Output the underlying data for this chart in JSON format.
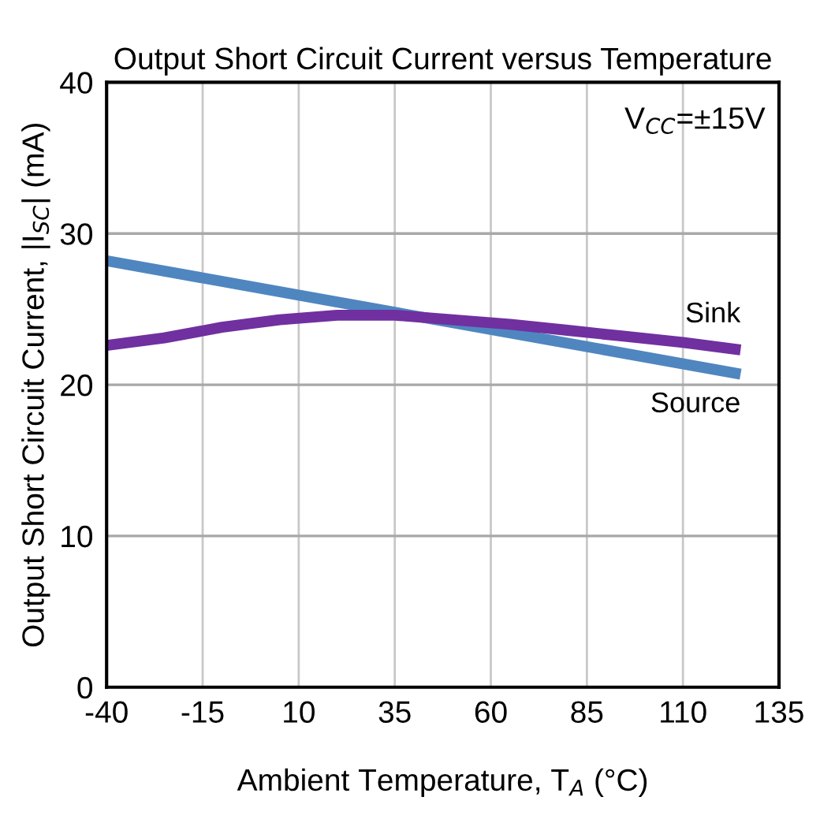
{
  "chart_data": {
    "type": "line",
    "title": "Output Short Circuit Current versus Temperature",
    "xlabel": "Ambient Temperature, T$_{A}$ (°C)",
    "ylabel": "Output Short Circuit Current, |I$_{SC}$| (mA)",
    "annotations": [
      "V$_{CC}$=±15V"
    ],
    "xlim": [
      -40,
      135
    ],
    "xticks": [
      -40,
      -15,
      10,
      35,
      60,
      85,
      110,
      135
    ],
    "ylim": [
      0,
      40
    ],
    "yticks": [
      0,
      10,
      20,
      30,
      40
    ],
    "grid": true,
    "legend": false,
    "series": [
      {
        "name": "Source",
        "color": "#4f86c0",
        "x": [
          -40,
          125
        ],
        "values": [
          28.2,
          20.7
        ]
      },
      {
        "name": "Sink",
        "color": "#7030a0",
        "x": [
          -40,
          -25,
          -10,
          5,
          20,
          35,
          50,
          65,
          80,
          95,
          110,
          125
        ],
        "values": [
          22.6,
          23.1,
          23.8,
          24.3,
          24.6,
          24.6,
          24.3,
          24.0,
          23.6,
          23.2,
          22.8,
          22.3
        ]
      }
    ]
  }
}
